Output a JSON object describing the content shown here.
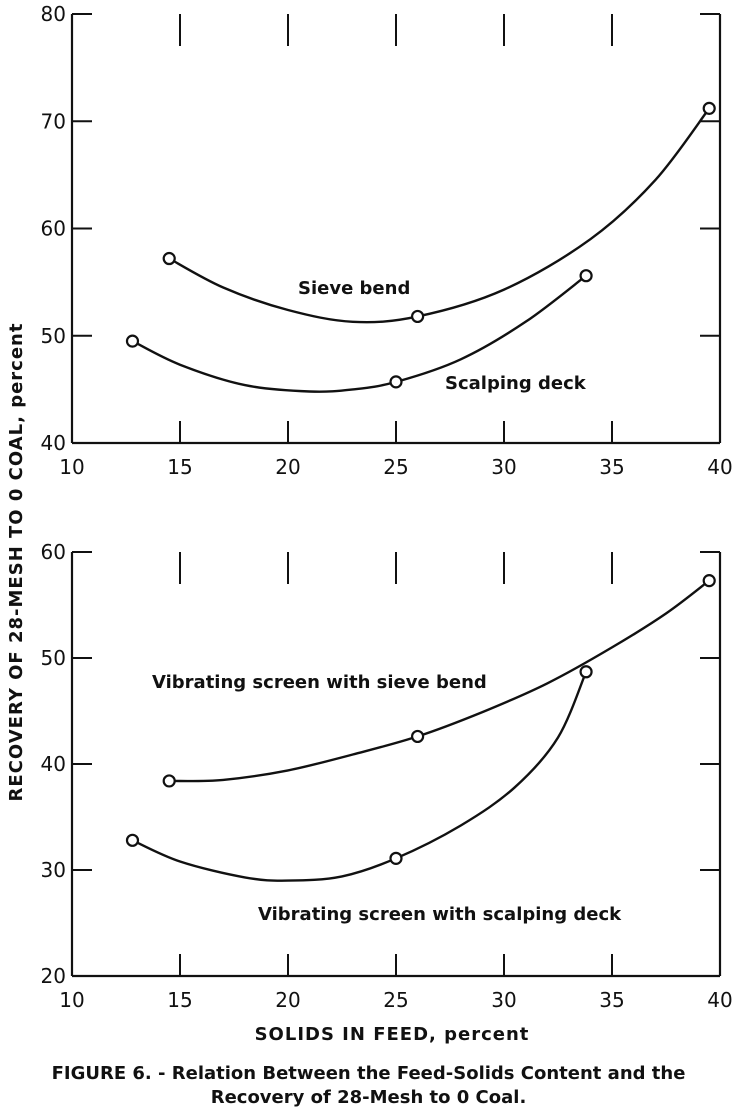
{
  "figure": {
    "ylabel": "RECOVERY OF 28-MESH TO 0 COAL, percent",
    "xlabel": "SOLIDS  IN  FEED, percent",
    "caption_line1": "FIGURE 6. - Relation Between the Feed-Solids Content and the",
    "caption_line2": "Recovery of 28-Mesh to 0 Coal."
  },
  "chart_data": [
    {
      "type": "line",
      "xlim": [
        10,
        40
      ],
      "ylim": [
        40,
        80
      ],
      "xticks": [
        10,
        15,
        20,
        25,
        30,
        35,
        40
      ],
      "yticks": [
        40,
        50,
        60,
        70,
        80
      ],
      "grid": false,
      "series": [
        {
          "name": "Sieve bend",
          "points": [
            [
              14.5,
              57.2
            ],
            [
              26.0,
              51.8
            ],
            [
              39.5,
              71.2
            ]
          ],
          "curve": [
            [
              14.5,
              57.2
            ],
            [
              17,
              54.5
            ],
            [
              20,
              52.4
            ],
            [
              23,
              51.3
            ],
            [
              26,
              51.8
            ],
            [
              30,
              54.3
            ],
            [
              34,
              59.0
            ],
            [
              37,
              64.5
            ],
            [
              39.5,
              71.2
            ]
          ]
        },
        {
          "name": "Scalping deck",
          "points": [
            [
              12.8,
              49.5
            ],
            [
              25.0,
              45.7
            ],
            [
              33.8,
              55.6
            ]
          ],
          "curve": [
            [
              12.8,
              49.5
            ],
            [
              15,
              47.3
            ],
            [
              18,
              45.4
            ],
            [
              21,
              44.8
            ],
            [
              23,
              45.0
            ],
            [
              25,
              45.7
            ],
            [
              28,
              47.8
            ],
            [
              31,
              51.3
            ],
            [
              33.8,
              55.6
            ]
          ]
        }
      ]
    },
    {
      "type": "line",
      "xlim": [
        10,
        40
      ],
      "ylim": [
        20,
        60
      ],
      "xticks": [
        10,
        15,
        20,
        25,
        30,
        35,
        40
      ],
      "yticks": [
        20,
        30,
        40,
        50,
        60
      ],
      "grid": false,
      "series": [
        {
          "name": "Vibrating screen with sieve bend",
          "points": [
            [
              14.5,
              38.4
            ],
            [
              26.0,
              42.6
            ],
            [
              39.5,
              57.3
            ]
          ],
          "curve": [
            [
              14.5,
              38.4
            ],
            [
              17,
              38.5
            ],
            [
              20,
              39.4
            ],
            [
              23,
              40.9
            ],
            [
              26,
              42.6
            ],
            [
              29,
              44.9
            ],
            [
              32,
              47.6
            ],
            [
              35,
              51.0
            ],
            [
              37.5,
              54.2
            ],
            [
              39.5,
              57.3
            ]
          ]
        },
        {
          "name": "Vibrating screen with scalping deck",
          "points": [
            [
              12.8,
              32.8
            ],
            [
              25.0,
              31.1
            ],
            [
              33.8,
              48.7
            ]
          ],
          "curve": [
            [
              12.8,
              32.8
            ],
            [
              15,
              30.8
            ],
            [
              18,
              29.3
            ],
            [
              20,
              29.0
            ],
            [
              22.5,
              29.4
            ],
            [
              25,
              31.1
            ],
            [
              28,
              34.2
            ],
            [
              30.5,
              37.8
            ],
            [
              32.5,
              42.5
            ],
            [
              33.8,
              48.7
            ]
          ]
        }
      ]
    }
  ]
}
